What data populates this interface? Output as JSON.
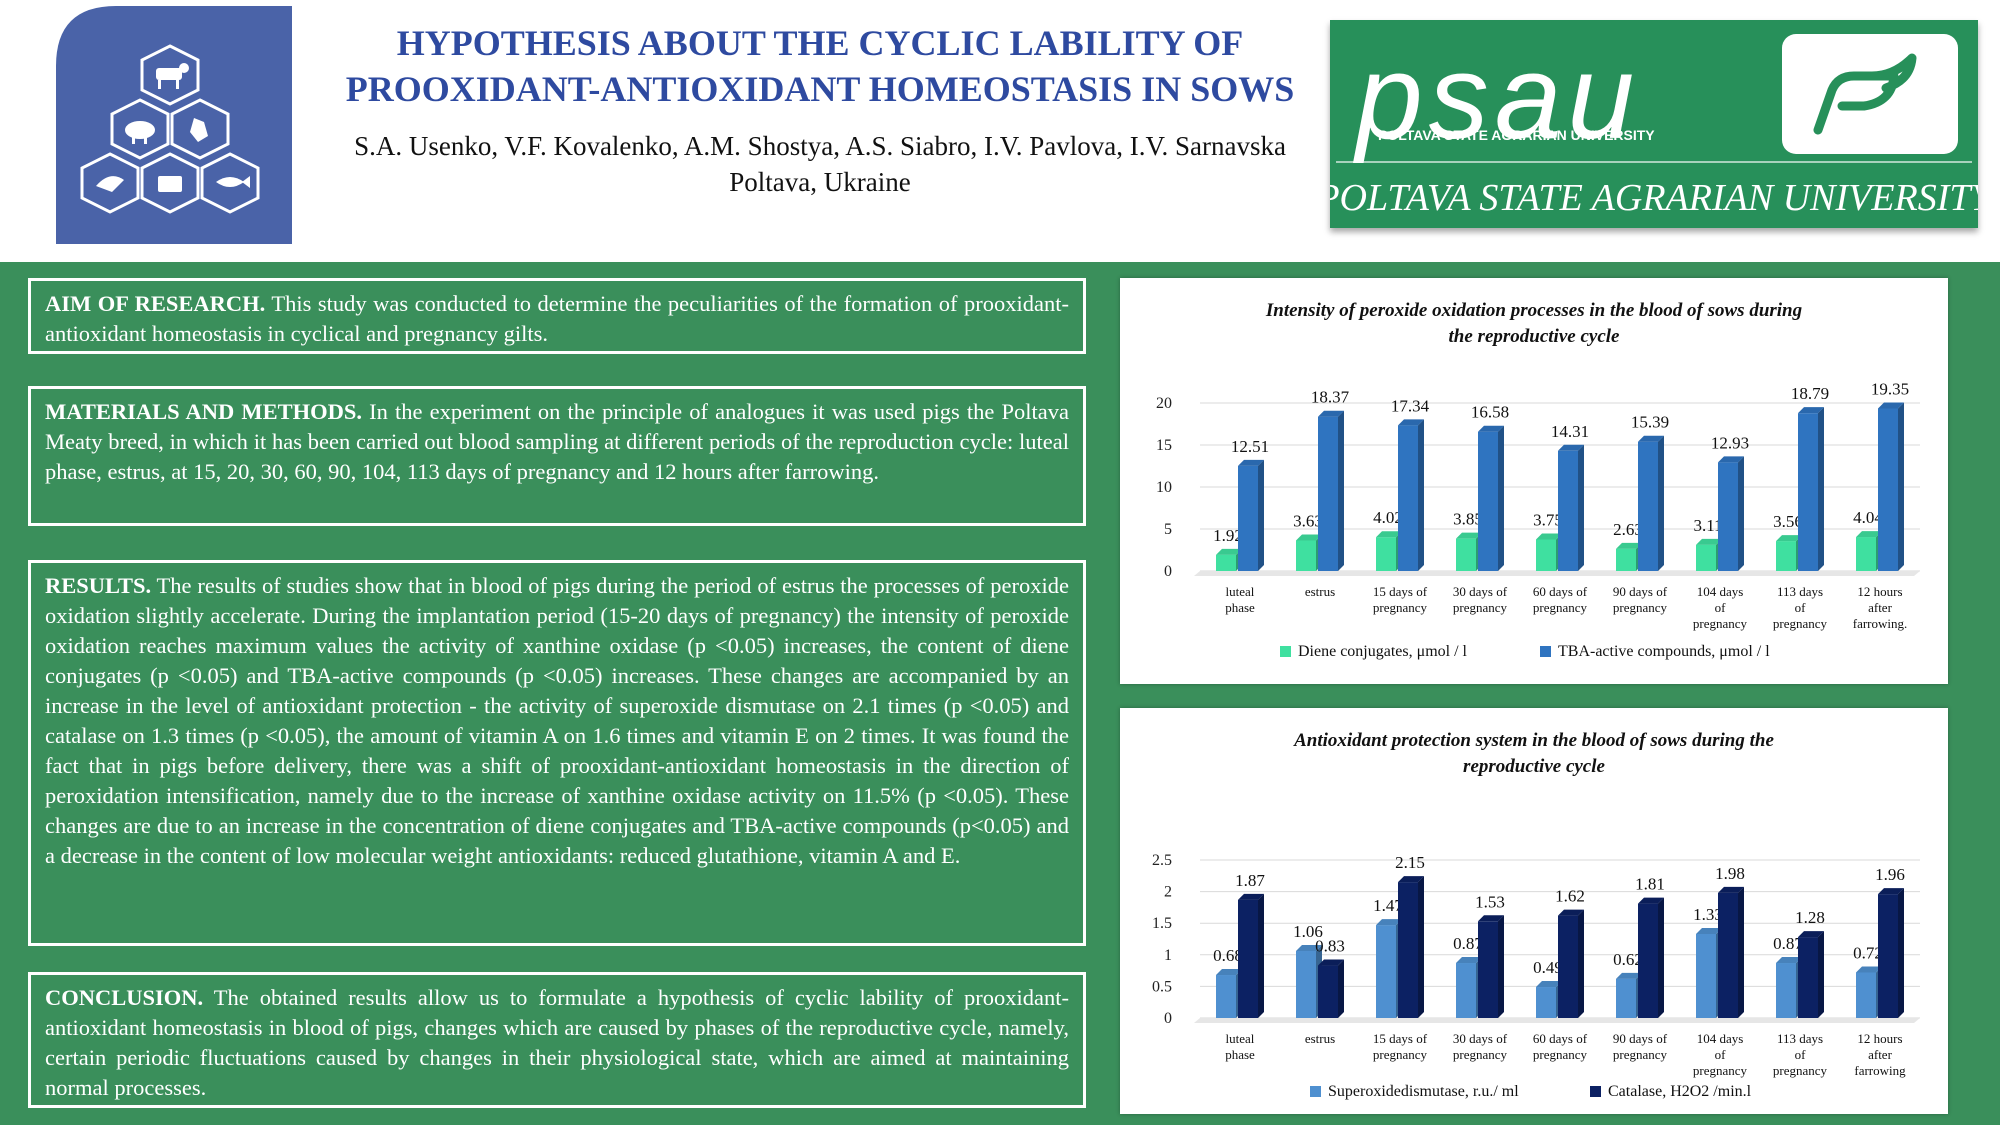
{
  "header": {
    "title_line1": "HYPOTHESIS ABOUT THE CYCLIC LABILITY OF",
    "title_line2": "PROOXIDANT-ANTIOXIDANT HOMEOSTASIS IN SOWS",
    "authors": "S.A. Usenko, V.F. Kovalenko, A.M. Shostya, A.S. Siabro, I.V. Pavlova, I.V. Sarnavska",
    "affiliation": "Poltava, Ukraine",
    "logo_right": {
      "wordmark": "psau",
      "subline": "POLTAVA STATE AGRARIAN UNIVERSITY",
      "fullname": "POLTAVA STATE AGRARIAN UNIVERSITY"
    }
  },
  "sections": {
    "aim": {
      "heading": "AIM OF RESEARCH.",
      "text": " This study was conducted to determine the peculiarities of the formation of prooxidant-antioxidant homeostasis in cyclical and pregnancy gilts."
    },
    "methods": {
      "heading": "MATERIALS AND METHODS.",
      "text": " In the experiment on the principle of analogues it was used pigs the Poltava Meaty breed, in which it has been carried out blood sampling at different periods of the reproduction cycle: luteal phase, estrus, at 15, 20, 30, 60, 90, 104, 113 days of pregnancy and 12 hours after farrowing."
    },
    "results": {
      "heading": "RESULTS.",
      "text": " The results of studies show that in blood of pigs during the period of estrus the processes of peroxide oxidation slightly accelerate. During the implantation period (15-20 days of pregnancy) the intensity of peroxide oxidation reaches maximum values the activity of xanthine oxidase (p <0.05) increases, the content of diene conjugates (p <0.05) and TBA-active compounds (p <0.05) increases. These changes are accompanied by an increase in the level of antioxidant protection - the activity of superoxide dismutase on 2.1 times (p <0.05) and catalase on 1.3 times (p <0.05), the amount of vitamin A on 1.6 times and vitamin E on 2 times. It was found the fact that in pigs before delivery, there was a shift of prooxidant-antioxidant homeostasis in the direction of peroxidation intensification, namely due to the increase of xanthine oxidase activity on 11.5% (p <0.05). These changes are due to an increase in the concentration of diene conjugates and TBA-active compounds (p<0.05) and a decrease in the content of low molecular weight antioxidants: reduced glutathione, vitamin A and E."
    },
    "conclusion": {
      "heading": "CONCLUSION.",
      "text": " The obtained results allow us to formulate a hypothesis of cyclic lability of prooxidant-antioxidant homeostasis in blood of pigs, changes which are caused by phases of the reproductive cycle, namely, certain periodic fluctuations caused by changes in their physiological state, which are aimed at maintaining normal processes."
    }
  },
  "colors": {
    "background_green": "#3a8f5b",
    "title_blue": "#2e4aa0",
    "diene": "#3fe0a0",
    "tba": "#2f74c0",
    "sod": "#4f90d0",
    "catalase": "#0c2163"
  },
  "chart_data": [
    {
      "type": "bar",
      "title_line1": "Intensity of peroxide oxidation processes in the blood of sows during",
      "title_line2": "the reproductive cycle",
      "categories": [
        [
          "luteal",
          "phase"
        ],
        [
          "estrus"
        ],
        [
          "15 days of",
          "pregnancy"
        ],
        [
          "30 days of",
          "pregnancy"
        ],
        [
          "60 days of",
          "pregnancy"
        ],
        [
          "90 days of",
          "pregnancy"
        ],
        [
          "104 days",
          "of",
          "pregnancy"
        ],
        [
          "113 days",
          "of",
          "pregnancy"
        ],
        [
          "12 hours",
          "after",
          "farrowing."
        ]
      ],
      "series": [
        {
          "name": "Diene conjugates, μmol / l",
          "values": [
            1.92,
            3.63,
            4.02,
            3.85,
            3.75,
            2.63,
            3.11,
            3.56,
            4.04
          ]
        },
        {
          "name": "TBA-active compounds, μmol / l",
          "values": [
            12.51,
            18.37,
            17.34,
            16.58,
            14.31,
            15.39,
            12.93,
            18.79,
            19.35
          ]
        }
      ],
      "ylim": [
        0,
        20
      ],
      "yticks": [
        "0",
        "5",
        "10",
        "15",
        "20"
      ],
      "grid": true,
      "legend": "bottom"
    },
    {
      "type": "bar",
      "title_line1": "Antioxidant protection system in the blood of sows during the",
      "title_line2": "reproductive cycle",
      "categories": [
        [
          "luteal",
          "phase"
        ],
        [
          "estrus"
        ],
        [
          "15 days of",
          "pregnancy"
        ],
        [
          "30 days of",
          "pregnancy"
        ],
        [
          "60 days of",
          "pregnancy"
        ],
        [
          "90 days of",
          "pregnancy"
        ],
        [
          "104 days",
          "of",
          "pregnancy"
        ],
        [
          "113 days",
          "of",
          "pregnancy"
        ],
        [
          "12 hours",
          "after",
          "farrowing"
        ]
      ],
      "series": [
        {
          "name": "Superoxidedismutase, r.u./ ml",
          "values": [
            0.68,
            1.06,
            1.47,
            0.87,
            0.49,
            0.62,
            1.33,
            0.87,
            0.72
          ]
        },
        {
          "name": "Catalase, H2O2 /min.l",
          "values": [
            1.87,
            0.83,
            2.15,
            1.53,
            1.62,
            1.81,
            1.98,
            1.28,
            1.96
          ]
        }
      ],
      "ylim": [
        0,
        2.5
      ],
      "yticks": [
        "0",
        "0.5",
        "1",
        "1.5",
        "2",
        "2.5"
      ],
      "grid": true,
      "legend": "bottom"
    }
  ]
}
